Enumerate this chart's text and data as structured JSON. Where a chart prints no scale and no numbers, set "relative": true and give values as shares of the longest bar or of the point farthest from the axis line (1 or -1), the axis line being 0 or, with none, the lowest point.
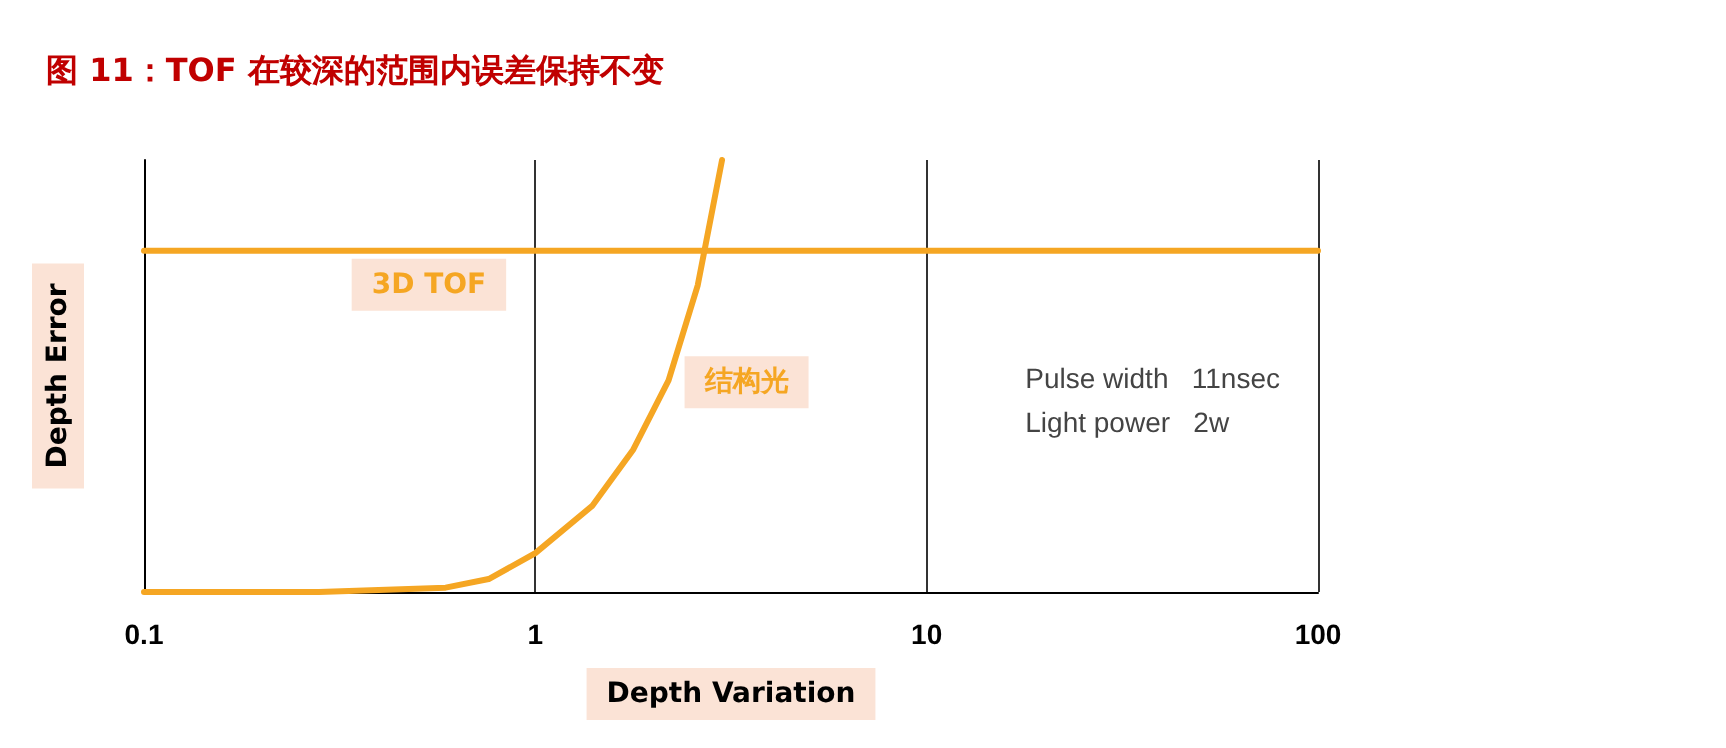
{
  "chart_data": {
    "type": "line",
    "title": "图 11：TOF 在较深的范围内误差保持不变",
    "xlabel": "Depth Variation",
    "ylabel": "Depth Error",
    "log": "x",
    "relative": true,
    "xlim": [
      0.1,
      100
    ],
    "xticks": [
      0.1,
      1,
      10,
      100
    ],
    "grid": "x",
    "legend": false,
    "marker": "none",
    "line_style": "solid",
    "series": [
      {
        "name": "3D TOF",
        "color": "#f5a623",
        "x": [
          0.1,
          100
        ],
        "values": [
          0.79,
          0.79
        ]
      },
      {
        "name": "结构光",
        "color": "#f5a623",
        "x": [
          0.1,
          0.28,
          0.59,
          0.76,
          1,
          1.4,
          1.78,
          2.19,
          2.6,
          3.0
        ],
        "values": [
          0,
          0,
          0.01,
          0.03,
          0.09,
          0.2,
          0.33,
          0.49,
          0.71,
          1
        ]
      }
    ],
    "annotations": [
      "Pulse width   11nsec\nLight power   2w"
    ]
  }
}
